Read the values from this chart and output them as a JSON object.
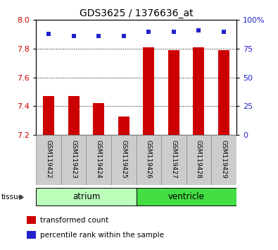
{
  "title": "GDS3625 / 1376636_at",
  "samples": [
    "GSM119422",
    "GSM119423",
    "GSM119424",
    "GSM119425",
    "GSM119426",
    "GSM119427",
    "GSM119428",
    "GSM119429"
  ],
  "bar_values": [
    7.47,
    7.47,
    7.42,
    7.33,
    7.81,
    7.79,
    7.81,
    7.79
  ],
  "percentile_values": [
    88,
    86,
    86,
    86,
    90,
    90,
    91,
    90
  ],
  "ymin": 7.2,
  "ymax": 8.0,
  "yticks": [
    7.2,
    7.4,
    7.6,
    7.8,
    8.0
  ],
  "y2min": 0,
  "y2max": 100,
  "y2ticks": [
    0,
    25,
    50,
    75,
    100
  ],
  "y2ticklabels": [
    "0",
    "25",
    "50",
    "75",
    "100%"
  ],
  "bar_color": "#cc0000",
  "dot_color": "#2222cc",
  "atrium_color": "#bbffbb",
  "ventricle_color": "#44dd44",
  "label_bg_color": "#cccccc",
  "tissue_groups_atrium": [
    0,
    1,
    2,
    3
  ],
  "tissue_groups_ventricle": [
    4,
    5,
    6,
    7
  ],
  "legend_bar_label": "transformed count",
  "legend_dot_label": "percentile rank within the sample"
}
